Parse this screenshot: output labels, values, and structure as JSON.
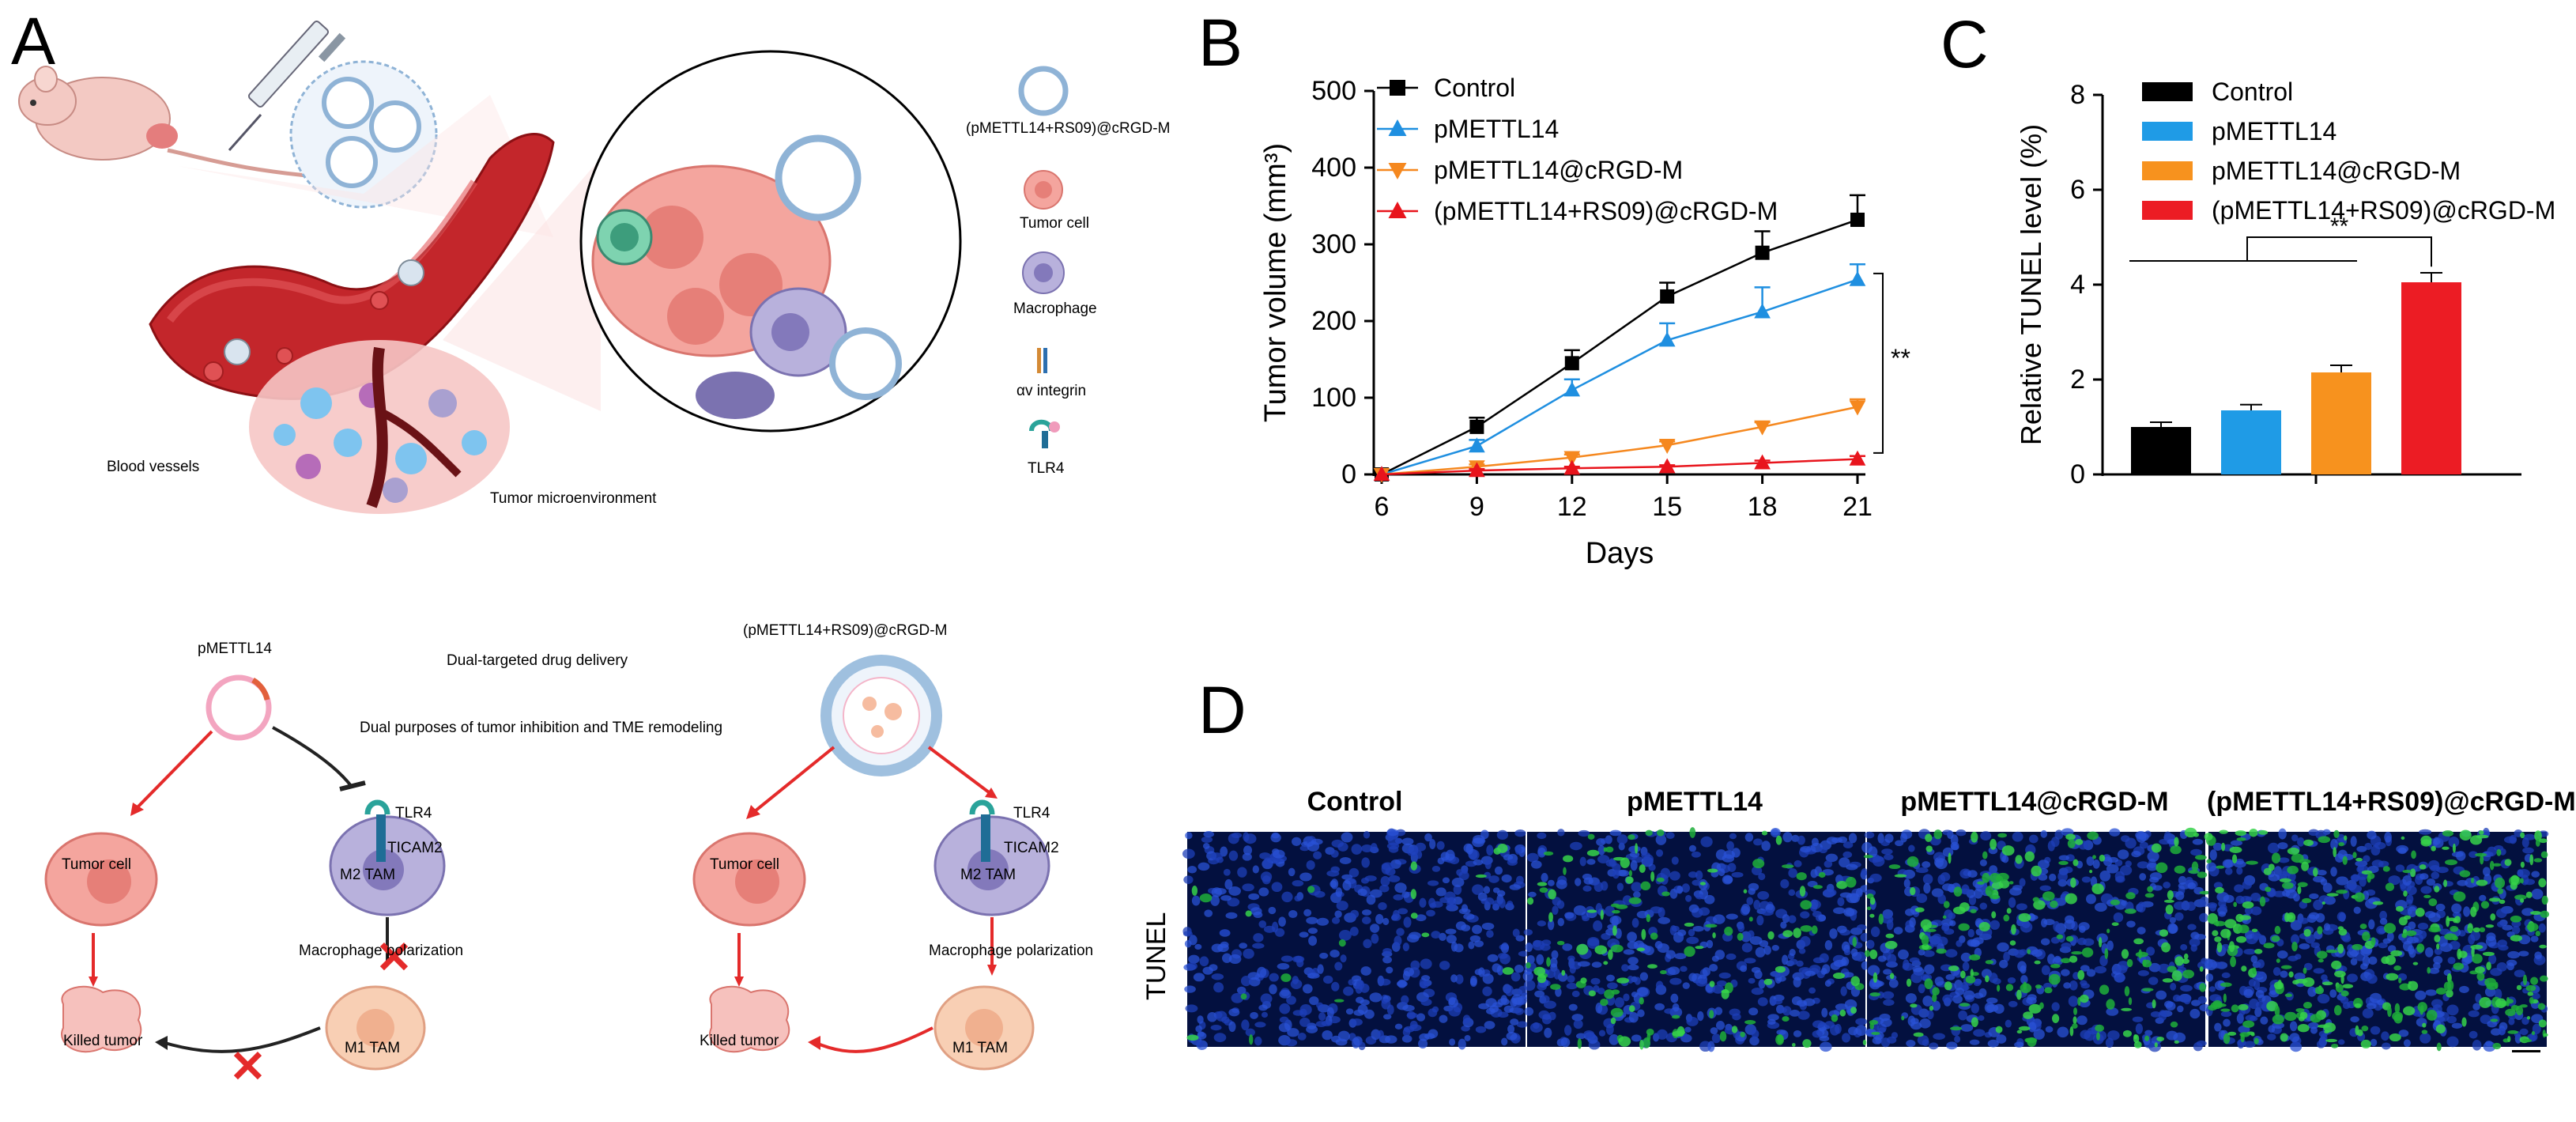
{
  "panels": {
    "a": "A",
    "b": "B",
    "c": "C",
    "d": "D"
  },
  "schematic_top": {
    "legend": [
      {
        "label": "(pMETTL14+RS09)@cRGD-M",
        "icon": "nanoparticle-icon"
      },
      {
        "label": "Tumor cell",
        "icon": "tumor-cell-icon"
      },
      {
        "label": "Macrophage",
        "icon": "macrophage-icon"
      },
      {
        "label": "αv integrin",
        "icon": "integrin-icon"
      },
      {
        "label": "TLR4",
        "icon": "tlr4-icon"
      }
    ],
    "blood_vessels": "Blood vessels",
    "tumor_microenvironment": "Tumor microenvironment"
  },
  "schematic_bottom": {
    "left": {
      "title": "pMETTL14",
      "tumor_cell": "Tumor cell",
      "killed_tumor": "Killed tumor",
      "tlr4": "TLR4",
      "ticam2": "TICAM2",
      "m2": "M2 TAM",
      "m1": "M1 TAM",
      "polarization": "Macrophage polarization"
    },
    "center": {
      "line1": "Dual-targeted drug delivery",
      "line2": "Dual purposes of tumor inhibition and TME remodeling"
    },
    "right": {
      "title": "(pMETTL14+RS09)@cRGD-M",
      "tumor_cell": "Tumor cell",
      "killed_tumor": "Killed tumor",
      "tlr4": "TLR4",
      "ticam2": "TICAM2",
      "m2": "M2 TAM",
      "m1": "M1 TAM",
      "polarization": "Macrophage polarization"
    }
  },
  "chart_data": [
    {
      "panel": "B",
      "type": "line",
      "xlabel": "Days",
      "ylabel": "Tumor volume (mm³)",
      "x": [
        6,
        9,
        12,
        15,
        18,
        21
      ],
      "xlim": [
        6,
        21
      ],
      "ylim": [
        0,
        500
      ],
      "yticks": [
        0,
        100,
        200,
        300,
        400,
        500
      ],
      "legend_position": "top-left",
      "significance": "**",
      "series": [
        {
          "name": "Control",
          "color": "#000000",
          "marker": "square",
          "values": [
            0,
            62,
            145,
            232,
            289,
            332
          ],
          "errors": [
            0,
            12,
            17,
            18,
            28,
            32
          ]
        },
        {
          "name": "pMETTL14",
          "color": "#1f8fe0",
          "marker": "triangle-up",
          "values": [
            0,
            37,
            110,
            175,
            212,
            254
          ],
          "errors": [
            0,
            8,
            14,
            22,
            32,
            20
          ]
        },
        {
          "name": "pMETTL14@cRGD-M",
          "color": "#f5881f",
          "marker": "triangle-down",
          "values": [
            0,
            10,
            22,
            38,
            62,
            88
          ],
          "errors": [
            0,
            3,
            4,
            5,
            6,
            10
          ]
        },
        {
          "name": "(pMETTL14+RS09)@cRGD-M",
          "color": "#e8141c",
          "marker": "triangle-up",
          "values": [
            0,
            5,
            8,
            10,
            15,
            20
          ],
          "errors": [
            0,
            2,
            2,
            2,
            3,
            4
          ]
        }
      ]
    },
    {
      "panel": "C",
      "type": "bar",
      "ylabel": "Relative TUNEL level (%)",
      "ylim": [
        0,
        8
      ],
      "yticks": [
        0,
        2,
        4,
        6,
        8
      ],
      "legend_position": "top-left",
      "significance": "**",
      "categories": [
        "Control",
        "pMETTL14",
        "pMETTL14@cRGD-M",
        "(pMETTL14+RS09)@cRGD-M"
      ],
      "values": [
        1.0,
        1.35,
        2.15,
        4.05
      ],
      "errors": [
        0.1,
        0.12,
        0.15,
        0.2
      ],
      "colors": [
        "#000000",
        "#1f9be6",
        "#f7921e",
        "#ec1c24"
      ]
    }
  ],
  "panel_d": {
    "row_label": "TUNEL",
    "columns": [
      "Control",
      "pMETTL14",
      "pMETTL14@cRGD-M",
      "(pMETTL14+RS09)@cRGD-M"
    ],
    "green_density": [
      0.05,
      0.35,
      0.55,
      0.9
    ]
  }
}
